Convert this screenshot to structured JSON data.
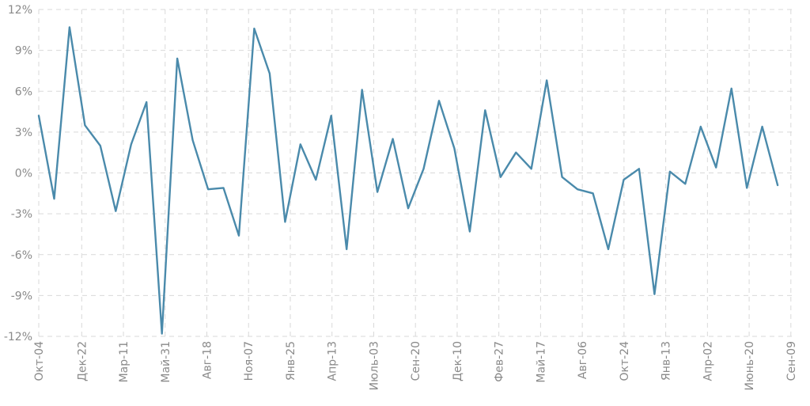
{
  "chart_data": {
    "type": "line",
    "title": "",
    "xlabel": "",
    "ylabel": "",
    "ylim": [
      -12,
      12
    ],
    "y_ticks": [
      -12,
      -9,
      -6,
      -3,
      0,
      3,
      6,
      9,
      12
    ],
    "y_tick_labels": [
      "-12%",
      "-9%",
      "-6%",
      "-3%",
      "0%",
      "3%",
      "6%",
      "9%",
      "12%"
    ],
    "x_tick_labels": [
      "Окт-04",
      "Дек-22",
      "Мар-11",
      "Май-31",
      "Авг-18",
      "Ноя-07",
      "Янв-25",
      "Апр-13",
      "Июль-03",
      "Сен-20",
      "Дек-10",
      "Фев-27",
      "Май-17",
      "Авг-06",
      "Окт-24",
      "Янв-13",
      "Апр-02",
      "Июнь-20",
      "Сен-09"
    ],
    "x_tick_positions": [
      0,
      2.79,
      5.5,
      8.21,
      10.92,
      13.63,
      16.34,
      19.05,
      21.76,
      24.47,
      27.18,
      29.89,
      32.6,
      35.31,
      38.02,
      40.73,
      43.44,
      46.15,
      48.86
    ],
    "grid": true,
    "colors": {
      "line": "#4a8aab",
      "grid": "#d9d9d9",
      "tick_text": "#8a8a8a"
    },
    "series": [
      {
        "values": [
          4.2,
          -1.9,
          10.7,
          3.5,
          2.0,
          -2.8,
          2.1,
          5.2,
          -11.8,
          8.4,
          2.4,
          -1.2,
          -1.1,
          -4.6,
          10.6,
          7.3,
          -3.6,
          2.1,
          -0.5,
          4.2,
          -5.6,
          6.1,
          -1.4,
          2.5,
          -2.6,
          0.3,
          5.3,
          1.8,
          -4.3,
          4.6,
          -0.3,
          1.5,
          0.3,
          6.8,
          -0.3,
          -1.2,
          -1.5,
          -5.6,
          -0.5,
          0.3,
          -8.9,
          0.1,
          -0.8,
          3.4,
          0.4,
          6.2,
          -1.1,
          3.4,
          -0.9
        ]
      }
    ]
  }
}
